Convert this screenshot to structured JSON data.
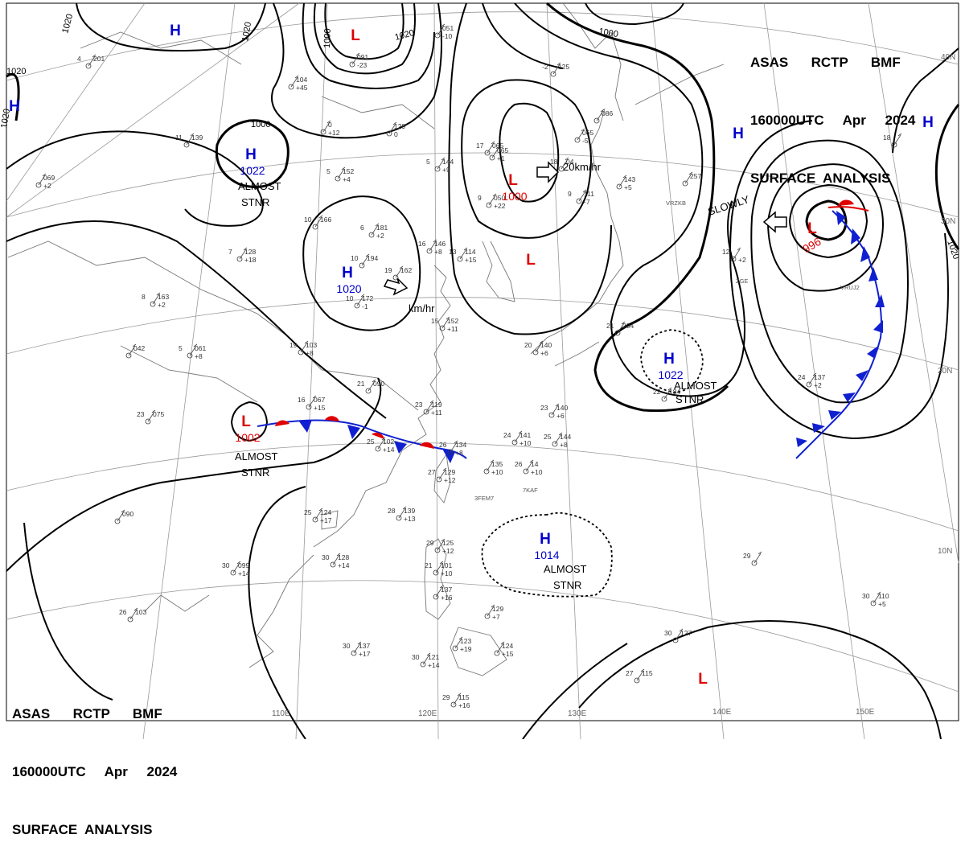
{
  "header": {
    "line1": "ASAS      RCTP      BMF",
    "line2": "160000UTC     Apr     2024",
    "line3": "SURFACE  ANALYSIS"
  },
  "colors": {
    "high": "#0000cc",
    "low": "#dd0000",
    "isobar": "#000000",
    "grid": "#888888",
    "warm_front": "#e00000",
    "cold_front": "#0010d0"
  },
  "lon_labels": [
    "110E",
    "120E",
    "130E",
    "140E",
    "150E"
  ],
  "lat_labels": [
    "40N",
    "30N",
    "20N",
    "10N"
  ],
  "pressure_centers": [
    {
      "type": "H",
      "value": "1022",
      "note": "ALMOST STNR"
    },
    {
      "type": "H",
      "value": "1020",
      "note": ""
    },
    {
      "type": "H",
      "value": "1022",
      "note": "ALMOST STNR"
    },
    {
      "type": "H",
      "value": "1014",
      "note": "ALMOST STNR"
    },
    {
      "type": "L",
      "value": "1000",
      "note": ""
    },
    {
      "type": "L",
      "value": "996",
      "note": "SLOWLY"
    },
    {
      "type": "L",
      "value": "1002",
      "note": "ALMOST STNR"
    },
    {
      "type": "L",
      "value": "",
      "note": ""
    },
    {
      "type": "L",
      "value": "",
      "note": ""
    },
    {
      "type": "L",
      "value": "",
      "note": ""
    },
    {
      "type": "H",
      "value": "",
      "note": ""
    },
    {
      "type": "H",
      "value": "",
      "note": ""
    },
    {
      "type": "H",
      "value": "",
      "note": ""
    },
    {
      "type": "H",
      "value": "",
      "note": ""
    }
  ],
  "notes": {
    "almost_stnr_1": "ALMOST",
    "almost_stnr_2": "STNR",
    "slowly": "SLOWLY"
  },
  "motion_labels": [
    "20km/hr",
    "km/hr"
  ],
  "isobar_labels": [
    "1020",
    "1020",
    "1020",
    "1020",
    "1000",
    "1000",
    "1020",
    "1000",
    "1020"
  ],
  "stations": [
    {
      "t": "6",
      "p": "181",
      "tend": "+2"
    },
    {
      "t": "10",
      "p": "166",
      "tend": ""
    },
    {
      "t": "5",
      "p": "152",
      "tend": "+4"
    },
    {
      "t": "5",
      "p": "144",
      "tend": "+9"
    },
    {
      "t": "",
      "p": "129",
      "tend": "0"
    },
    {
      "t": "10",
      "p": "194",
      "tend": ""
    },
    {
      "t": "19",
      "p": "162",
      "tend": ""
    },
    {
      "t": "10",
      "p": "172",
      "tend": "-1"
    },
    {
      "t": "16",
      "p": "146",
      "tend": "+8"
    },
    {
      "t": "13",
      "p": "114",
      "tend": "+15"
    },
    {
      "t": "17",
      "p": "065",
      "tend": ""
    },
    {
      "t": "9",
      "p": "050",
      "tend": "+22"
    },
    {
      "t": "",
      "p": "065",
      "tend": "+1"
    },
    {
      "t": "18",
      "p": "04",
      "tend": ""
    },
    {
      "t": "9",
      "p": "111",
      "tend": "-7"
    },
    {
      "t": "7",
      "p": "128",
      "tend": "+18"
    },
    {
      "t": "11",
      "p": "139",
      "tend": ""
    },
    {
      "t": "8",
      "p": "163",
      "tend": "+2"
    },
    {
      "t": "5",
      "p": "061",
      "tend": "+8"
    },
    {
      "t": "",
      "p": "042",
      "tend": ""
    },
    {
      "t": "19",
      "p": "103",
      "tend": "+8"
    },
    {
      "t": "21",
      "p": "090",
      "tend": ""
    },
    {
      "t": "23",
      "p": "075",
      "tend": ""
    },
    {
      "t": "16",
      "p": "067",
      "tend": "+15"
    },
    {
      "t": "23",
      "p": "119",
      "tend": "+11"
    },
    {
      "t": "25",
      "p": "102",
      "tend": "+14"
    },
    {
      "t": "26",
      "p": "134",
      "tend": "+8"
    },
    {
      "t": "",
      "p": "135",
      "tend": "+10"
    },
    {
      "t": "26",
      "p": "14",
      "tend": "+10"
    },
    {
      "t": "24",
      "p": "141",
      "tend": "+10"
    },
    {
      "t": "25",
      "p": "144",
      "tend": "+8"
    },
    {
      "t": "23",
      "p": "140",
      "tend": "+6"
    },
    {
      "t": "20",
      "p": "140",
      "tend": "+6"
    },
    {
      "t": "27",
      "p": "129",
      "tend": "+12"
    },
    {
      "t": "28",
      "p": "139",
      "tend": "+13"
    },
    {
      "t": "25",
      "p": "124",
      "tend": "+17"
    },
    {
      "t": "30",
      "p": "099",
      "tend": "+14"
    },
    {
      "t": "30",
      "p": "128",
      "tend": "+14"
    },
    {
      "t": "26",
      "p": "103",
      "tend": ""
    },
    {
      "t": "",
      "p": "090",
      "tend": ""
    },
    {
      "t": "29",
      "p": "125",
      "tend": "+12"
    },
    {
      "t": "21",
      "p": "101",
      "tend": "+10"
    },
    {
      "t": "",
      "p": "137",
      "tend": "+16"
    },
    {
      "t": "",
      "p": "129",
      "tend": "+7"
    },
    {
      "t": "",
      "p": "123",
      "tend": "+19"
    },
    {
      "t": "",
      "p": "124",
      "tend": "+15"
    },
    {
      "t": "30",
      "p": "121",
      "tend": "+14"
    },
    {
      "t": "30",
      "p": "137",
      "tend": "+17"
    },
    {
      "t": "29",
      "p": "115",
      "tend": "+16"
    },
    {
      "t": "15",
      "p": "152",
      "tend": "+11"
    },
    {
      "t": "21",
      "p": "204",
      "tend": ""
    },
    {
      "t": "24",
      "p": "137",
      "tend": "+2"
    },
    {
      "t": "12",
      "p": "",
      "tend": "+2"
    },
    {
      "t": "",
      "p": "257",
      "tend": ""
    },
    {
      "t": "18",
      "p": "",
      "tend": ""
    },
    {
      "t": "",
      "p": "143",
      "tend": "+5"
    },
    {
      "t": "",
      "p": "086",
      "tend": ""
    },
    {
      "t": "30",
      "p": "110",
      "tend": "+5"
    },
    {
      "t": "30",
      "p": "127",
      "tend": ""
    },
    {
      "t": "27",
      "p": "115",
      "tend": ""
    },
    {
      "t": "29",
      "p": "",
      "tend": ""
    },
    {
      "t": "22",
      "p": "184",
      "tend": ""
    },
    {
      "t": "",
      "p": "051",
      "tend": "-10"
    },
    {
      "t": "",
      "p": "091",
      "tend": "-23"
    },
    {
      "t": "",
      "p": "104",
      "tend": "+45"
    },
    {
      "t": "",
      "p": "0",
      "tend": "+12"
    },
    {
      "t": "4",
      "p": "201",
      "tend": ""
    },
    {
      "t": "",
      "p": "069",
      "tend": "+2"
    },
    {
      "t": "-2",
      "p": "125",
      "tend": ""
    },
    {
      "t": "",
      "p": "065",
      "tend": "-5"
    }
  ],
  "station_ids": [
    "VRZKB",
    "3FEM7",
    "7KAF",
    "VRUJ2",
    "ZGE"
  ]
}
